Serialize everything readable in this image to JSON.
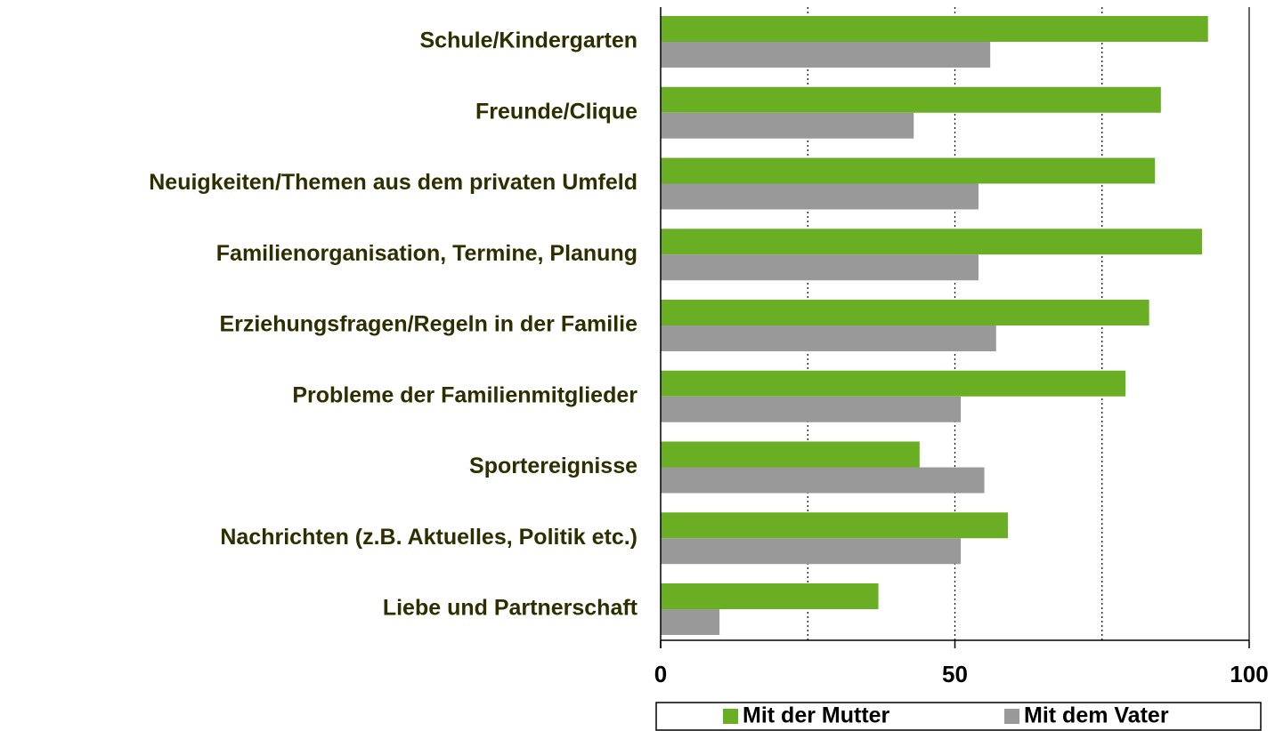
{
  "chart_data": {
    "type": "hbar",
    "categories": [
      "Schule/Kindergarten",
      "Freunde/Clique",
      "Neuigkeiten/Themen aus dem privaten Umfeld",
      "Familienorganisation, Termine, Planung",
      "Erziehungsfragen/Regeln in der Familie",
      "Probleme der Familienmitglieder",
      "Sportereignisse",
      "Nachrichten (z.B. Aktuelles, Politik etc.)",
      "Liebe und Partnerschaft"
    ],
    "series": [
      {
        "name": "Mit der Mutter",
        "color": "#6aaf23",
        "values": [
          93,
          85,
          84,
          92,
          83,
          79,
          44,
          59,
          37
        ]
      },
      {
        "name": "Mit dem Vater",
        "color": "#999999",
        "values": [
          56,
          43,
          54,
          54,
          57,
          51,
          55,
          51,
          10
        ]
      }
    ],
    "xlim": [
      0,
      100
    ],
    "xticks": [
      0,
      50,
      100
    ],
    "xgrid": [
      25,
      50,
      75,
      100
    ],
    "legend": "bottom"
  }
}
